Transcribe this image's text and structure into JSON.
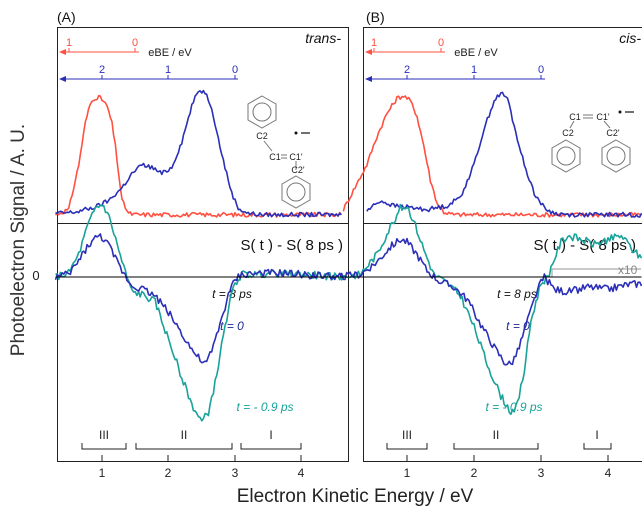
{
  "figure": {
    "ylabel": "Photoelectron Signal / A. U.",
    "xlabel": "Electron Kinetic Energy / eV",
    "zero_label": "0"
  },
  "colors": {
    "red": "#ff5040",
    "blue": "#2b2fb8",
    "teal": "#18a29a",
    "navy": "#1e2a90",
    "black": "#000000",
    "gray": "#999999"
  },
  "chart_data": [
    {
      "panel": "A",
      "type": "line",
      "tag": "(A)",
      "isomer": "trans-",
      "xlim": [
        0.3,
        4.6
      ],
      "xticks": [
        1,
        2,
        3,
        4
      ],
      "ebe_axis_label": "eBE / eV",
      "ebe_red_ticks": [
        "1",
        "0"
      ],
      "ebe_blue_ticks": [
        "2",
        "1",
        "0"
      ],
      "molecule_labels": [
        "C2",
        "C1",
        "C1'",
        "C2'"
      ],
      "top": {
        "ylim": [
          0,
          1.05
        ],
        "series": [
          {
            "color": "red",
            "x": [
              0.3,
              0.5,
              0.65,
              0.75,
              0.82,
              0.88,
              0.95,
              1.0,
              1.05,
              1.1,
              1.15,
              1.2,
              1.3,
              1.4,
              1.5,
              4.6
            ],
            "y": [
              0.01,
              0.05,
              0.4,
              0.73,
              0.87,
              0.92,
              0.93,
              0.91,
              0.88,
              0.82,
              0.72,
              0.55,
              0.12,
              0.02,
              0.01,
              0.01
            ]
          },
          {
            "color": "blue",
            "x": [
              0.3,
              0.6,
              0.9,
              1.1,
              1.3,
              1.45,
              1.6,
              1.75,
              1.9,
              2.05,
              2.2,
              2.35,
              2.45,
              2.55,
              2.65,
              2.75,
              2.85,
              2.95,
              3.05,
              3.2,
              3.4,
              4.6
            ],
            "y": [
              0.02,
              0.03,
              0.07,
              0.12,
              0.22,
              0.33,
              0.4,
              0.38,
              0.33,
              0.38,
              0.58,
              0.86,
              0.98,
              0.97,
              0.85,
              0.6,
              0.38,
              0.18,
              0.06,
              0.02,
              0.01,
              0.01
            ]
          }
        ]
      },
      "bottom": {
        "title": "S( t ) - S( 8 ps )",
        "ylim": [
          -1.35,
          0.75
        ],
        "curve_labels": [
          "t = 8 ps",
          "t = 0",
          "t = - 0.9 ps"
        ],
        "range_labels": [
          "III",
          "II",
          "I"
        ],
        "range_spans": [
          [
            0.75,
            1.4
          ],
          [
            1.55,
            3.0
          ],
          [
            3.2,
            4.1
          ]
        ],
        "series": [
          {
            "color": "teal",
            "x": [
              0.3,
              0.5,
              0.65,
              0.78,
              0.9,
              1.0,
              1.08,
              1.18,
              1.3,
              1.45,
              1.6,
              1.8,
              2.0,
              2.2,
              2.35,
              2.5,
              2.6,
              2.7,
              2.8,
              2.9,
              3.0,
              3.1,
              3.3,
              3.6,
              4.0,
              4.6
            ],
            "y": [
              0.0,
              0.03,
              0.18,
              0.4,
              0.55,
              0.58,
              0.52,
              0.35,
              0.12,
              -0.12,
              -0.14,
              -0.2,
              -0.5,
              -0.8,
              -1.02,
              -1.16,
              -1.08,
              -0.85,
              -0.55,
              -0.25,
              -0.05,
              0.02,
              0.02,
              0.03,
              0.02,
              0.0
            ]
          },
          {
            "color": "blue",
            "x": [
              0.3,
              0.5,
              0.65,
              0.8,
              0.95,
              1.05,
              1.15,
              1.3,
              1.45,
              1.6,
              1.8,
              2.0,
              2.2,
              2.4,
              2.55,
              2.65,
              2.75,
              2.9,
              3.0,
              3.1,
              3.4,
              3.7,
              4.0,
              4.6
            ],
            "y": [
              0.0,
              0.02,
              0.13,
              0.26,
              0.33,
              0.3,
              0.2,
              0.05,
              -0.07,
              -0.09,
              -0.15,
              -0.28,
              -0.45,
              -0.62,
              -0.7,
              -0.6,
              -0.42,
              -0.15,
              -0.02,
              0.02,
              0.03,
              0.03,
              0.02,
              0.0
            ]
          },
          {
            "color": "black",
            "x": [
              0.3,
              4.6
            ],
            "y": [
              0.0,
              0.0
            ]
          }
        ]
      }
    },
    {
      "panel": "B",
      "type": "line",
      "tag": "(B)",
      "isomer": "cis-",
      "xlim": [
        0.0,
        4.6
      ],
      "xticks": [
        1,
        2,
        3,
        4
      ],
      "ebe_axis_label": "eBE / eV",
      "ebe_red_ticks": [
        "1",
        "0"
      ],
      "ebe_blue_ticks": [
        "2",
        "1",
        "0"
      ],
      "molecule_labels": [
        "C1",
        "C1'",
        "C2",
        "C2'"
      ],
      "top": {
        "ylim": [
          0,
          1.05
        ],
        "series": [
          {
            "color": "red",
            "x": [
              0.05,
              0.2,
              0.4,
              0.55,
              0.7,
              0.85,
              0.95,
              1.05,
              1.15,
              1.25,
              1.35,
              1.45,
              1.55,
              1.7,
              4.6
            ],
            "y": [
              0.05,
              0.2,
              0.4,
              0.62,
              0.8,
              0.92,
              0.94,
              0.9,
              0.78,
              0.55,
              0.28,
              0.1,
              0.03,
              0.01,
              0.01
            ]
          },
          {
            "color": "blue",
            "x": [
              0.4,
              0.6,
              0.8,
              1.0,
              1.3,
              1.6,
              1.8,
              2.0,
              2.15,
              2.3,
              2.4,
              2.5,
              2.6,
              2.75,
              2.9,
              3.05,
              3.2,
              3.4,
              4.6
            ],
            "y": [
              0.04,
              0.12,
              0.08,
              0.07,
              0.05,
              0.08,
              0.15,
              0.4,
              0.68,
              0.9,
              0.96,
              0.92,
              0.7,
              0.4,
              0.18,
              0.06,
              0.02,
              0.01,
              0.01
            ]
          }
        ]
      },
      "bottom": {
        "title": "S( t ) - S( 8 ps )",
        "ylim": [
          -1.35,
          0.75
        ],
        "curve_labels": [
          "t = 8 ps",
          "t = 0",
          "t = - 0.9 ps"
        ],
        "multiplier_label": "x10",
        "range_labels": [
          "III",
          "II",
          "I"
        ],
        "range_spans": [
          [
            0.75,
            1.35
          ],
          [
            1.65,
            2.9
          ],
          [
            3.55,
            3.95
          ]
        ],
        "series": [
          {
            "color": "teal",
            "x": [
              0.0,
              0.3,
              0.55,
              0.75,
              0.9,
              1.0,
              1.1,
              1.25,
              1.4,
              1.6,
              1.8,
              2.0,
              2.2,
              2.4,
              2.55,
              2.65,
              2.75,
              2.85,
              3.0,
              3.1,
              3.2,
              3.3,
              3.4,
              3.6,
              3.8,
              4.0,
              4.2,
              4.4,
              4.6
            ],
            "y": [
              0.0,
              0.02,
              0.18,
              0.4,
              0.55,
              0.57,
              0.45,
              0.22,
              0.02,
              -0.05,
              -0.15,
              -0.4,
              -0.7,
              -0.95,
              -1.08,
              -1.02,
              -0.75,
              -0.35,
              -0.05,
              0.0,
              0.15,
              0.28,
              0.33,
              0.3,
              0.26,
              0.3,
              0.33,
              0.2,
              0.1
            ]
          },
          {
            "color": "blue",
            "x": [
              0.0,
              0.3,
              0.55,
              0.75,
              0.9,
              1.0,
              1.15,
              1.3,
              1.5,
              1.7,
              1.9,
              2.1,
              2.3,
              2.45,
              2.55,
              2.65,
              2.8,
              2.95,
              3.05,
              3.2,
              3.4,
              3.7,
              4.0,
              4.3,
              4.6
            ],
            "y": [
              0.0,
              0.02,
              0.12,
              0.24,
              0.3,
              0.28,
              0.18,
              0.05,
              -0.04,
              -0.08,
              -0.18,
              -0.38,
              -0.56,
              -0.68,
              -0.7,
              -0.6,
              -0.35,
              -0.1,
              0.0,
              -0.1,
              -0.12,
              -0.08,
              -0.1,
              -0.06,
              -0.05
            ]
          },
          {
            "color": "black",
            "x": [
              0.0,
              4.6
            ],
            "y": [
              0.0,
              0.0
            ]
          }
        ]
      }
    }
  ]
}
